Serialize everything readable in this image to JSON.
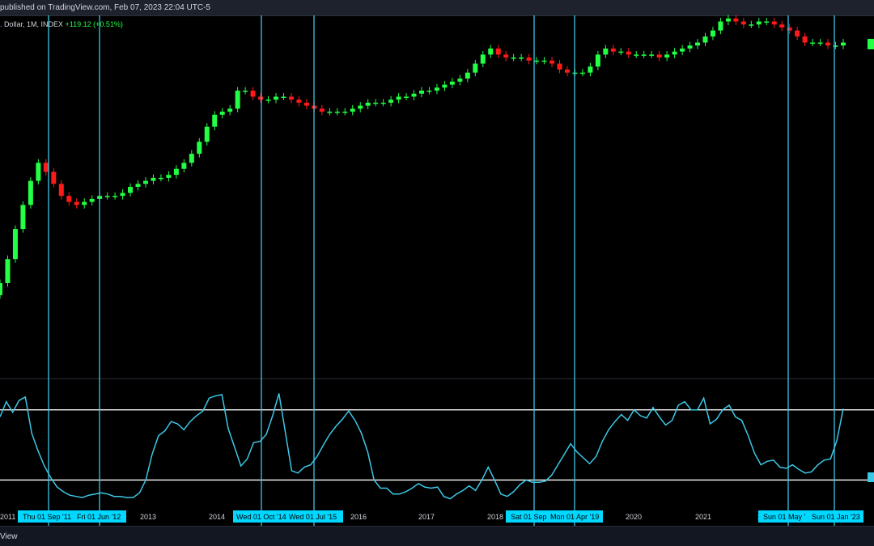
{
  "header": {
    "publisher": "published on TradingView.com, Feb 07, 2023 22:04 UTC-5",
    "symbol": ". Dollar, 1M, INDEX",
    "change": "+119.12 (+0.51%)"
  },
  "footer": {
    "brand": "View"
  },
  "colors": {
    "up": "#22ff44",
    "down": "#ff1a1a",
    "osc": "#3cc7e6",
    "vline": "#3cc7e6",
    "level": "#ffffff",
    "tag": "#00d8ff"
  },
  "chart_data": {
    "type": "candlestick",
    "timeframe": "1M",
    "x_axis": {
      "ticks": [
        "2011",
        "2013",
        "2014",
        "2016",
        "2017",
        "2018",
        "2020",
        "2021",
        "2"
      ],
      "markers": [
        "Thu 01 Sep '11",
        "Fri 01 Jun '12",
        "Wed 01 Oct '14",
        "Wed 01 Jul '15",
        "Sat 01 Sep",
        "Mon 01 Apr '19",
        "Sun 01 May '",
        "Sun 01 Jan '23"
      ]
    },
    "price_panel": {
      "description": "Monthly candles, relative price level 0-100 (axis not visible)",
      "closes": [
        22,
        30,
        40,
        48,
        56,
        62,
        59,
        55,
        51,
        49,
        48,
        49,
        50,
        51,
        51,
        51,
        52,
        54,
        55,
        56,
        57,
        57,
        58,
        60,
        62,
        65,
        69,
        74,
        78,
        79,
        80,
        86,
        86,
        84,
        83,
        83,
        84,
        84,
        83,
        82,
        81,
        80,
        79,
        79,
        79,
        79,
        80,
        81,
        82,
        82,
        82,
        83,
        84,
        84,
        85,
        86,
        86,
        87,
        88,
        89,
        90,
        92,
        95,
        98,
        100,
        98,
        97,
        97,
        97,
        96,
        96,
        96,
        95,
        93,
        92,
        92,
        92,
        94,
        98,
        100,
        99,
        99,
        98,
        98,
        98,
        98,
        97,
        98,
        99,
        100,
        101,
        102,
        104,
        106,
        109,
        110,
        109,
        108,
        108,
        109,
        109,
        108,
        107,
        106,
        104,
        102,
        102,
        102,
        101,
        101,
        102
      ]
    },
    "oscillator_panel": {
      "levels": [
        80,
        20
      ],
      "values": [
        74,
        87,
        78,
        88,
        91,
        60,
        45,
        32,
        22,
        14,
        10,
        7,
        6,
        5,
        7,
        8,
        9,
        8,
        6,
        6,
        5,
        5,
        9,
        20,
        42,
        58,
        62,
        70,
        68,
        63,
        70,
        75,
        79,
        90,
        92,
        93,
        64,
        48,
        32,
        38,
        52,
        53,
        59,
        75,
        94,
        61,
        28,
        26,
        31,
        33,
        40,
        50,
        59,
        66,
        72,
        79,
        71,
        60,
        44,
        20,
        13,
        13,
        8,
        8,
        10,
        13,
        17,
        14,
        13,
        14,
        6,
        4,
        8,
        11,
        15,
        11,
        20,
        31,
        20,
        8,
        6,
        10,
        16,
        20,
        18,
        18,
        19,
        24,
        33,
        42,
        51,
        44,
        39,
        34,
        40,
        53,
        63,
        70,
        76,
        71,
        80,
        75,
        73,
        82,
        74,
        67,
        71,
        84,
        87,
        80,
        80,
        90,
        68,
        72,
        80,
        84,
        74,
        71,
        58,
        43,
        33,
        36,
        37,
        31,
        30,
        33,
        29,
        26,
        27,
        33,
        37,
        38,
        54,
        81
      ]
    }
  }
}
